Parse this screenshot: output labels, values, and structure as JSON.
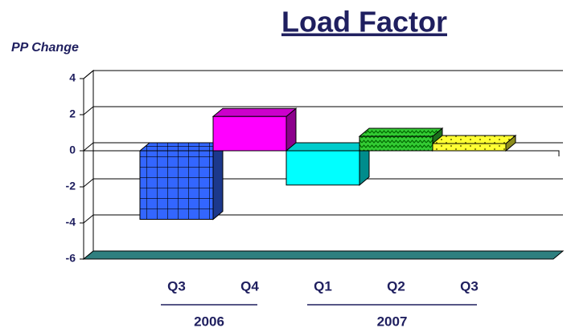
{
  "chart_data": {
    "type": "bar",
    "title": "Load Factor",
    "y_label": "PP Change",
    "groups": [
      {
        "name": "2006",
        "categories": [
          "Q3",
          "Q4"
        ],
        "values": [
          -3.8,
          1.9
        ],
        "colors": [
          "#3366ff",
          "#ff00ff"
        ],
        "patterns": [
          "grid",
          null
        ]
      },
      {
        "name": "2007",
        "categories": [
          "Q1",
          "Q2",
          "Q3"
        ],
        "values": [
          -1.9,
          0.8,
          0.4
        ],
        "colors": [
          "#00ffff",
          "#33cc33",
          "#ffff33"
        ],
        "patterns": [
          null,
          "zigzag",
          "dots"
        ]
      }
    ],
    "ylim": [
      -6,
      4
    ],
    "yticks": [
      -6,
      -4,
      -2,
      0,
      2,
      4
    ],
    "grid": true
  }
}
